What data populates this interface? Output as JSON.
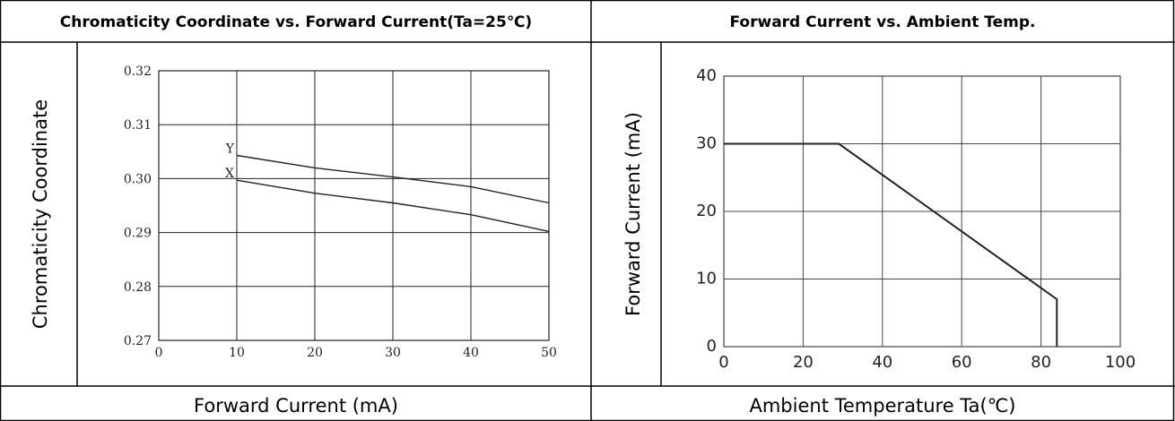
{
  "charts": {
    "left": {
      "header": "Chromaticity Coordinate vs. Forward Current(Ta=25℃)",
      "xlabel": "Forward Current (mA)",
      "ylabel": "Chromaticity Coordinate"
    },
    "right": {
      "header": "Forward Current vs. Ambient Temp.",
      "xlabel": "Ambient Temperature Ta(℃)",
      "ylabel": "Forward Current (mA)"
    }
  },
  "chart_data": [
    {
      "type": "line",
      "title": "Chromaticity Coordinate vs. Forward Current(Ta=25℃)",
      "xlabel": "Forward Current (mA)",
      "ylabel": "Chromaticity Coordinate",
      "xlim": [
        0,
        50
      ],
      "ylim": [
        0.27,
        0.32
      ],
      "x_ticks": [
        "0",
        "10",
        "20",
        "30",
        "40",
        "50"
      ],
      "y_ticks": [
        "0.27",
        "0.28",
        "0.29",
        "0.30",
        "0.31",
        "0.32"
      ],
      "grid": true,
      "series": [
        {
          "name": "Y",
          "x": [
            10,
            20,
            30,
            40,
            50
          ],
          "y": [
            0.3043,
            0.302,
            0.3003,
            0.2985,
            0.2955
          ]
        },
        {
          "name": "X",
          "x": [
            10,
            20,
            30,
            40,
            50
          ],
          "y": [
            0.2997,
            0.2973,
            0.2955,
            0.2933,
            0.2902
          ]
        }
      ]
    },
    {
      "type": "line",
      "title": "Forward Current vs. Ambient Temp.",
      "xlabel": "Ambient Temperature Ta(℃)",
      "ylabel": "Forward Current (mA)",
      "xlim": [
        0,
        100
      ],
      "ylim": [
        0,
        40
      ],
      "x_ticks": [
        "0",
        "20",
        "40",
        "60",
        "80",
        "100"
      ],
      "y_ticks": [
        "0",
        "10",
        "20",
        "30",
        "40"
      ],
      "grid": true,
      "series": [
        {
          "x": [
            0,
            29,
            84,
            84
          ],
          "y": [
            30,
            30,
            7,
            0
          ]
        }
      ]
    }
  ]
}
